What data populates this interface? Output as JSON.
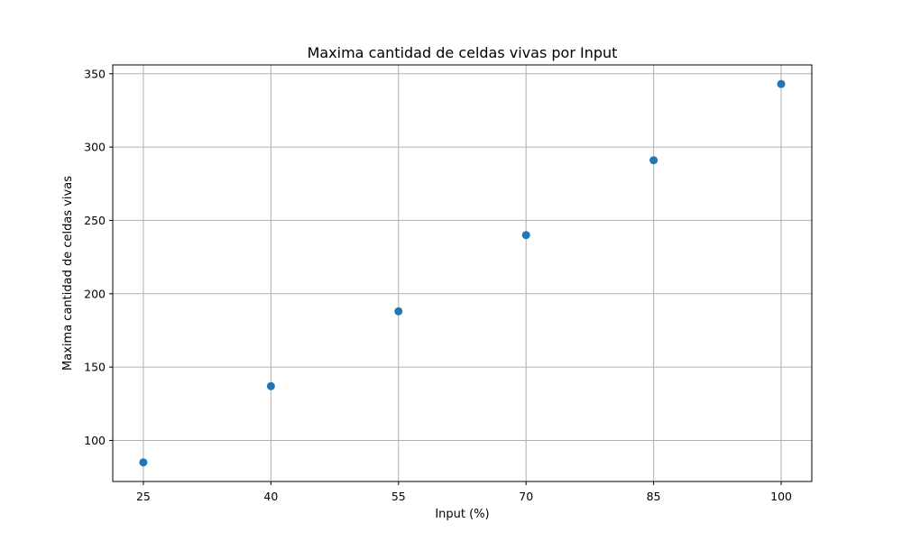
{
  "chart_data": {
    "type": "scatter",
    "title": "Maxima cantidad de celdas vivas por Input",
    "xlabel": "Input (%)",
    "ylabel": "Maxima cantidad de celdas vivas",
    "x": [
      25,
      40,
      55,
      70,
      85,
      100
    ],
    "y": [
      85,
      137,
      188,
      240,
      291,
      343
    ],
    "xticks": [
      25,
      40,
      55,
      70,
      85,
      100
    ],
    "xtick_labels": [
      "25",
      "40",
      "55",
      "70",
      "85",
      "100"
    ],
    "yticks": [
      100,
      150,
      200,
      250,
      300,
      350
    ],
    "ytick_labels": [
      "100",
      "150",
      "200",
      "250",
      "300",
      "350"
    ],
    "xlim": [
      21.4,
      103.6
    ],
    "ylim": [
      72,
      356
    ],
    "grid": true,
    "marker_color": "#1f77b4",
    "grid_color": "#b0b0b0"
  }
}
